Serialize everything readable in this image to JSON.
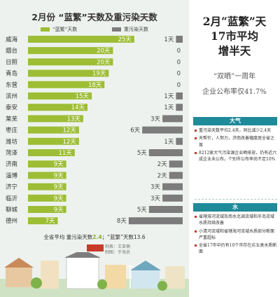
{
  "chart": {
    "title": "2月份 “蓝繁”天数及重污染天数",
    "legend_haze": "“蓝繁”天数",
    "legend_pollution": "重污染天数",
    "summary_prefix": "全省平均  重污染天数",
    "summary_value_1": "2.4",
    "summary_mid": "；“蓝繁”天数",
    "summary_value_2": "13.6",
    "credits_line1": "制表：王亚楠",
    "credits_line2": "制图：于海员"
  },
  "chart_data": {
    "type": "bar",
    "title": "2月份 “蓝繁”天数及重污染天数",
    "categories": [
      "威海",
      "烟台",
      "日照",
      "青岛",
      "东营",
      "滨州",
      "泰安",
      "莱芜",
      "枣庄",
      "潍坊",
      "菏泽",
      "济南",
      "淄博",
      "济宁",
      "临沂",
      "聊城",
      "德州"
    ],
    "series": [
      {
        "name": "“蓝繁”天数",
        "values": [
          25,
          20,
          20,
          19,
          18,
          15,
          14,
          13,
          12,
          12,
          11,
          9,
          9,
          9,
          9,
          9,
          7
        ],
        "labels": [
          "25天",
          "20天",
          "20天",
          "19天",
          "18天",
          "15天",
          "14天",
          "13天",
          "12天",
          "12天",
          "11天",
          "9天",
          "9天",
          "9天",
          "9天",
          "9天",
          "7天"
        ]
      },
      {
        "name": "重污染天数",
        "values": [
          1,
          0,
          0,
          0,
          0,
          1,
          1,
          3,
          6,
          1,
          5,
          2,
          2,
          3,
          3,
          5,
          8
        ],
        "labels": [
          "1天",
          "0",
          "0",
          "0",
          "0",
          "1天",
          "1天",
          "3天",
          "6天",
          "1天",
          "5天",
          "2天",
          "2天",
          "3天",
          "3天",
          "5天",
          "8天"
        ]
      }
    ],
    "ylim": [
      0,
      28
    ],
    "colors": {
      "haze": "#9dbd35",
      "pollution": "#7c7c7c"
    }
  },
  "right": {
    "headline": [
      "2月“蓝繁”天",
      "17市平均",
      "增半天"
    ],
    "sub_line1": "“双晒”一周年",
    "sub_line2": "企业公布率仅41.7%",
    "air_header": "大气",
    "air_items": [
      "重污染天数平均2.4天，同比减少2.4天",
      "天帮忙，人努力，济南改善幅度居全省之首",
      "8212家大气污染源企业晒排放，仍有近六成企业未公布，个别市公布率尚不足10%"
    ],
    "water_header": "水",
    "water_items": [
      "省辖淮河流域及南水北调流域和半岛流域水质持续改善",
      "小清河流域和省辖海河流域水质部分断面严重超标",
      "全省17市中仍有10个市存在劣五类水质断面"
    ]
  }
}
